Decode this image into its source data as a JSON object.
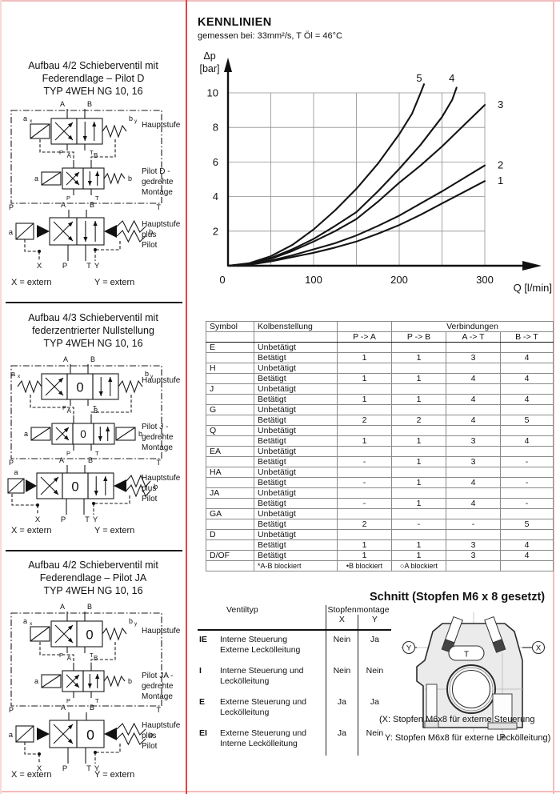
{
  "page": {
    "divider_color": "#e0463c",
    "frame_color": "#f3bdbd"
  },
  "labels": {
    "A": "A",
    "B": "B",
    "P": "P",
    "T": "T",
    "X": "X",
    "Y": "Y",
    "a": "a",
    "b": "b",
    "x": "x",
    "y": "y",
    "zero": "0"
  },
  "left_panel": {
    "blocks": [
      {
        "title": [
          "Aufbau 4/2 Schieberventil mit",
          "Federendlage – Pilot D",
          "TYP 4WEH NG 10, 16"
        ],
        "stage1": "Hauptstufe",
        "stage2": [
          "Pilot D -",
          "gedrehte",
          "Montage"
        ],
        "stage3": [
          "Hauptstufe",
          "plus",
          "Pilot"
        ],
        "extern_x": "X = extern",
        "extern_y": "Y = extern"
      },
      {
        "title": [
          "Aufbau 4/3 Schieberventil mit",
          "federzentrierter Nullstellung",
          "TYP 4WEH NG 10, 16"
        ],
        "stage1": "Hauptstufe",
        "stage2": [
          "Pilot J -",
          "gedrehte",
          "Montage"
        ],
        "stage3": [
          "Hauptstufe",
          "plus",
          "Pilot"
        ],
        "extern_x": "X = extern",
        "extern_y": "Y = extern"
      },
      {
        "title": [
          "Aufbau 4/2 Schieberventil mit",
          "Federendlage – Pilot JA",
          "TYP 4WEH NG 10, 16"
        ],
        "stage1": "Hauptstufe",
        "stage2": [
          "Pilot JA -",
          "gedrehte",
          "Montage"
        ],
        "stage3": [
          "Hauptstufe",
          "plus",
          "Pilot"
        ],
        "extern_x": "X = extern",
        "extern_y": "Y = extern"
      }
    ]
  },
  "chart_data": {
    "type": "line",
    "title": "KENNLINIEN",
    "subtitle": "gemessen bei: 33mm²/s, T Öl = 46°C",
    "ylabel": "Δp [bar]",
    "ylabel_lines": [
      "Δp",
      "[bar]"
    ],
    "xlabel": "Q [l/min]",
    "xlim": [
      0,
      300
    ],
    "ylim": [
      0,
      10
    ],
    "x_grid_step": 50,
    "y_grid_step": 2,
    "grid": true,
    "xticks": [
      "0",
      "100",
      "200",
      "300"
    ],
    "yticks": [
      "2",
      "4",
      "6",
      "8",
      "10"
    ],
    "series": [
      {
        "name": "1",
        "points": [
          [
            0,
            0
          ],
          [
            25,
            0.06
          ],
          [
            50,
            0.25
          ],
          [
            75,
            0.5
          ],
          [
            100,
            0.75
          ],
          [
            125,
            1.05
          ],
          [
            150,
            1.4
          ],
          [
            175,
            1.85
          ],
          [
            200,
            2.35
          ],
          [
            225,
            2.95
          ],
          [
            250,
            3.6
          ],
          [
            275,
            4.25
          ],
          [
            300,
            4.9
          ]
        ]
      },
      {
        "name": "2",
        "points": [
          [
            0,
            0
          ],
          [
            25,
            0.08
          ],
          [
            50,
            0.3
          ],
          [
            75,
            0.6
          ],
          [
            100,
            0.95
          ],
          [
            125,
            1.3
          ],
          [
            150,
            1.75
          ],
          [
            175,
            2.3
          ],
          [
            200,
            2.9
          ],
          [
            225,
            3.6
          ],
          [
            250,
            4.3
          ],
          [
            275,
            5.05
          ],
          [
            300,
            5.8
          ]
        ]
      },
      {
        "name": "3",
        "points": [
          [
            0,
            0
          ],
          [
            25,
            0.1
          ],
          [
            50,
            0.4
          ],
          [
            75,
            0.85
          ],
          [
            100,
            1.4
          ],
          [
            125,
            2.0
          ],
          [
            150,
            2.7
          ],
          [
            175,
            3.7
          ],
          [
            200,
            4.8
          ],
          [
            225,
            5.8
          ],
          [
            250,
            6.9
          ],
          [
            275,
            8.1
          ],
          [
            300,
            9.3
          ]
        ]
      },
      {
        "name": "4",
        "points": [
          [
            0,
            0
          ],
          [
            25,
            0.12
          ],
          [
            50,
            0.45
          ],
          [
            75,
            0.95
          ],
          [
            100,
            1.55
          ],
          [
            125,
            2.3
          ],
          [
            150,
            3.1
          ],
          [
            175,
            4.3
          ],
          [
            200,
            5.6
          ],
          [
            225,
            7.0
          ],
          [
            250,
            8.6
          ],
          [
            262,
            9.6
          ],
          [
            267,
            10.3
          ]
        ]
      },
      {
        "name": "5",
        "points": [
          [
            0,
            0
          ],
          [
            25,
            0.15
          ],
          [
            50,
            0.55
          ],
          [
            75,
            1.2
          ],
          [
            100,
            2.1
          ],
          [
            125,
            3.2
          ],
          [
            150,
            4.45
          ],
          [
            175,
            5.9
          ],
          [
            200,
            7.6
          ],
          [
            215,
            8.8
          ],
          [
            225,
            10.0
          ],
          [
            229,
            10.5
          ]
        ]
      }
    ]
  },
  "connection_table": {
    "header": {
      "symbol": "Symbol",
      "kolben": "Kolbenstellung",
      "verbindungen": "Verbindungen",
      "cols": [
        "P -> A",
        "P -> B",
        "A -> T",
        "B -> T"
      ]
    },
    "state_off": "Unbetätigt",
    "state_on": "Betätigt",
    "groups": [
      {
        "symbol": "E",
        "betaetigt": [
          "1",
          "1",
          "3",
          "4"
        ]
      },
      {
        "symbol": "H",
        "betaetigt": [
          "1",
          "1",
          "4",
          "4"
        ]
      },
      {
        "symbol": "J",
        "betaetigt": [
          "1",
          "1",
          "4",
          "4"
        ]
      },
      {
        "symbol": "G",
        "betaetigt": [
          "2",
          "2",
          "4",
          "5"
        ]
      },
      {
        "symbol": "Q",
        "betaetigt": [
          "1",
          "1",
          "3",
          "4"
        ]
      },
      {
        "symbol": "EA",
        "betaetigt": [
          "-",
          "1",
          "3",
          "-"
        ]
      },
      {
        "symbol": "HA",
        "betaetigt": [
          "-",
          "1",
          "4",
          "-"
        ]
      },
      {
        "symbol": "JA",
        "betaetigt": [
          "-",
          "1",
          "4",
          "-"
        ]
      },
      {
        "symbol": "GA",
        "betaetigt": [
          "2",
          "-",
          "-",
          "5"
        ]
      },
      {
        "symbol": "D",
        "betaetigt": [
          "1",
          "1",
          "3",
          "4"
        ]
      }
    ],
    "single_row": {
      "symbol": "D/OF",
      "state": "Betätigt",
      "values": [
        "1",
        "1",
        "3",
        "4"
      ]
    },
    "footnotes": [
      "*A-B blockiert",
      "•B blockiert",
      "○A blockiert"
    ]
  },
  "ventil_table": {
    "header_left": "Ventiltyp",
    "header_right": "Stopfenmontage",
    "cols": [
      "X",
      "Y"
    ],
    "rows": [
      {
        "code": "IE",
        "desc": [
          "Interne Steuerung",
          "Externe Leckölleitung"
        ],
        "x": "Nein",
        "y": "Ja"
      },
      {
        "code": "I",
        "desc": [
          "Interne Steuerung und",
          "Leckölleitung"
        ],
        "x": "Nein",
        "y": "Nein"
      },
      {
        "code": "E",
        "desc": [
          "Externe Steuerung und",
          "Leckölleitung"
        ],
        "x": "Ja",
        "y": "Ja"
      },
      {
        "code": "EI",
        "desc": [
          "Externe Steuerung und",
          "Interne Leckölleitung"
        ],
        "x": "Ja",
        "y": "Nein"
      }
    ]
  },
  "schnitt": {
    "heading": "Schnitt (Stopfen M6 x 8 gesetzt)",
    "ports": {
      "t": "T",
      "p": "P",
      "x": "X",
      "y": "Y"
    },
    "footnote_line1": "(X: Stopfen M6x8 für externe Steuerung",
    "footnote_line2": "Y: Stopfen M6x8 für externe Leckölleitung)"
  }
}
